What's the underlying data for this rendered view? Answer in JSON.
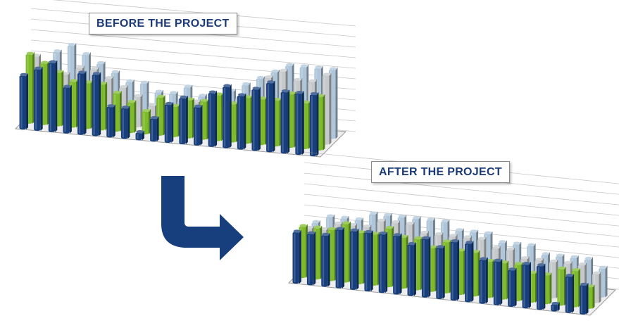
{
  "colors": {
    "navy": "#173f7d",
    "green": "#7dbb2a",
    "light_gray": "#c6c9cc",
    "light_blue": "#afc6da",
    "arrow": "#173f7d",
    "grid": "#9a9a9a"
  },
  "arrow_icon": "curved-down-right-arrow-icon",
  "chart_data": [
    {
      "type": "bar",
      "title": "BEFORE THE PROJECT",
      "series_colors": [
        "navy",
        "green",
        "light_gray",
        "light_blue"
      ],
      "grid": true,
      "values": [
        [
          7,
          8,
          9,
          6,
          8,
          8,
          4,
          4,
          1,
          3,
          5,
          6,
          5,
          7,
          8,
          7,
          8,
          9,
          8,
          8,
          8
        ],
        [
          9,
          8,
          7,
          6,
          6,
          6,
          5,
          4,
          3,
          5,
          4,
          5,
          5,
          6,
          5,
          6,
          6,
          6,
          7,
          6,
          7
        ],
        [
          8,
          7,
          6,
          7,
          7,
          6,
          5,
          4,
          3,
          3,
          4,
          4,
          4,
          4,
          5,
          6,
          8,
          9,
          8,
          8,
          9
        ],
        [
          6,
          8,
          9,
          8,
          7,
          6,
          5,
          5,
          4,
          4,
          5,
          4,
          4,
          5,
          6,
          7,
          8,
          9,
          9,
          9,
          9
        ]
      ]
    },
    {
      "type": "bar",
      "title": "AFTER THE PROJECT",
      "series_colors": [
        "navy",
        "green",
        "light_gray",
        "light_blue"
      ],
      "grid": true,
      "values": [
        [
          7,
          7,
          7,
          8,
          8,
          8,
          8,
          8,
          7,
          8,
          7,
          8,
          8,
          6,
          6,
          5,
          6,
          6,
          1,
          5,
          4
        ],
        [
          7,
          7,
          7,
          8,
          7,
          7,
          8,
          7,
          7,
          6,
          7,
          6,
          6,
          5,
          5,
          5,
          4,
          4,
          5,
          5,
          3
        ],
        [
          6,
          6,
          7,
          7,
          7,
          8,
          8,
          8,
          7,
          7,
          7,
          7,
          7,
          6,
          6,
          5,
          5,
          5,
          5,
          5,
          4
        ],
        [
          6,
          7,
          7,
          7,
          8,
          8,
          8,
          8,
          8,
          8,
          7,
          7,
          7,
          6,
          6,
          6,
          5,
          5,
          5,
          5,
          4
        ]
      ]
    }
  ]
}
